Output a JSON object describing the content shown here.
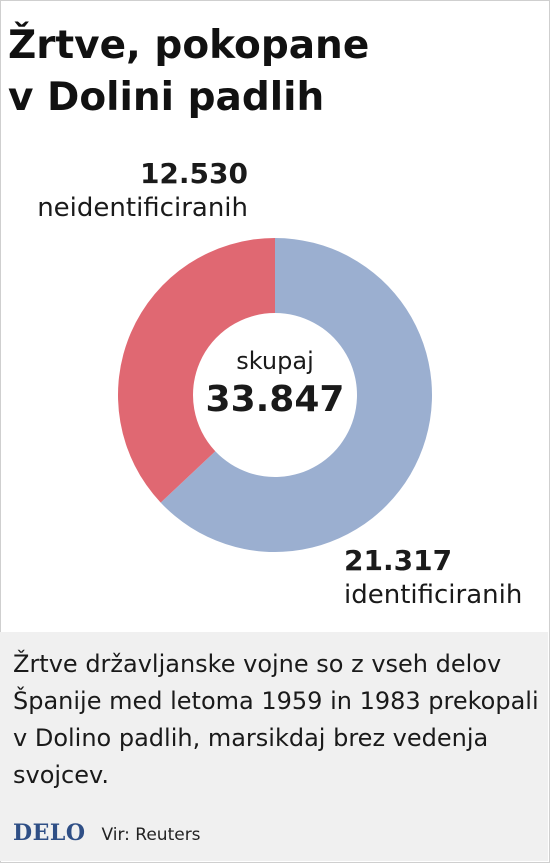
{
  "title_lines": [
    "Žrtve, pokopane",
    "v Dolini padlih"
  ],
  "chart_data": {
    "type": "pie",
    "title": "Žrtve, pokopane v Dolini padlih",
    "slices": [
      {
        "value": 21317,
        "value_label": "21.317",
        "label": "identificiranih",
        "color": "#9bafd0"
      },
      {
        "value": 12530,
        "value_label": "12.530",
        "label": "neidentificiranih",
        "color": "#e06872"
      }
    ],
    "center_caption": "skupaj",
    "total_label": "33.847"
  },
  "note": {
    "text": "Žrtve državljanske vojne so z vseh delov Španije med letoma 1959 in 1983 prekopali v Dolino padlih, marsikdaj brez vedenja svojcev."
  },
  "footer": {
    "logo": "DELO",
    "source": "Vir: Reuters"
  }
}
